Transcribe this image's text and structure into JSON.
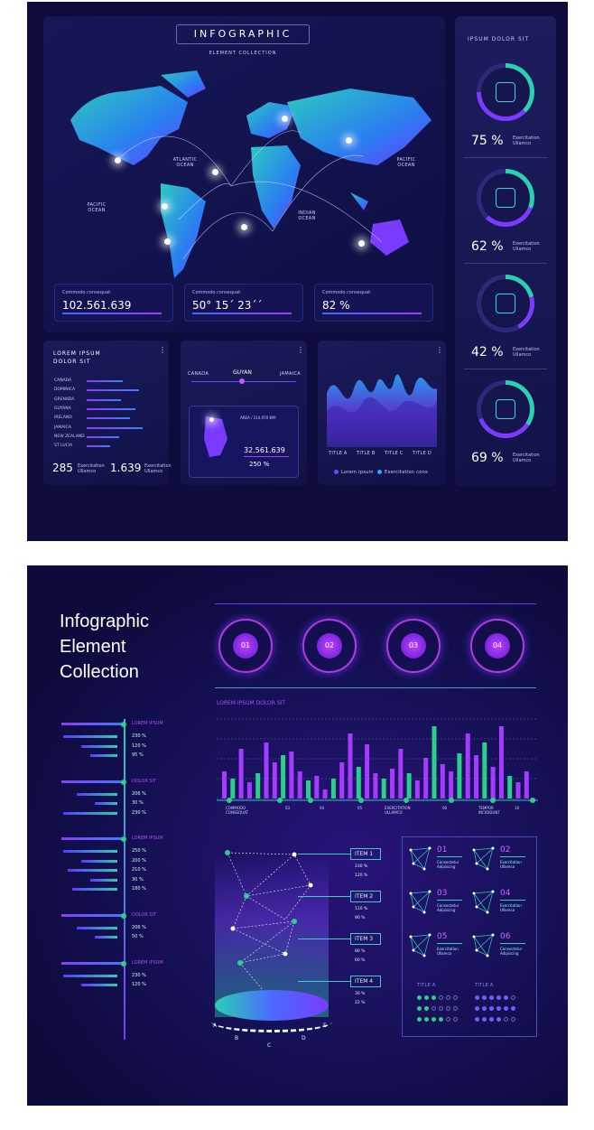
{
  "top": {
    "title": "INFOGRAPHIC",
    "subtitle": "ELEMENT COLLECTION",
    "oceans": {
      "atlantic": "ATLANTIC OCEAN",
      "pacific_left": "PACIFIC OCEAN",
      "pacific_right": "PACIFIC OCEAN",
      "indian": "INDIAN OCEAN"
    },
    "stats": [
      {
        "label": "Commodo consequat",
        "value": "102.561.639"
      },
      {
        "label": "Commodo consequat",
        "value": "50° 15´ 23´´"
      },
      {
        "label": "Commodo consequat",
        "value": "82 %"
      }
    ],
    "sidebar": {
      "title": "IPSUM DOLOR SIT",
      "items": [
        {
          "value": "75 %",
          "label": "Exercitation Ullamco"
        },
        {
          "value": "62 %",
          "label": "Exercitation Ullamco"
        },
        {
          "value": "42 %",
          "label": "Exercitation Ullamco"
        },
        {
          "value": "69 %",
          "label": "Exercitation Ullamco"
        }
      ]
    },
    "country_card": {
      "title": "LOREM IPSUM DOLOR SIT",
      "countries": [
        "CANADA",
        "DOMINICA",
        "GRENADA",
        "GUYANA",
        "IRELAND",
        "JAMAICA",
        "NEW ZEALAND",
        "ST LUCIA"
      ],
      "footer": [
        {
          "value": "285",
          "label": "Exercitation Ullamco"
        },
        {
          "value": "1.639",
          "label": "Exercitation Ullamco"
        }
      ]
    },
    "guyana_card": {
      "left": "CANADA",
      "center": "GUYAN",
      "right": "JAMAICA",
      "area": "AREA / 214,970 KM²",
      "value": "32.561.639",
      "pct": "250 %"
    },
    "wave_card": {
      "labels": [
        "TITLE A",
        "TITLE B",
        "TITLE C",
        "TITLE D"
      ],
      "legend": [
        "Lorem ipsum",
        "Exercitation cons"
      ]
    }
  },
  "bottom": {
    "title_lines": [
      "Infographic",
      "Element",
      "Collection"
    ],
    "circles": [
      "01",
      "02",
      "03",
      "04"
    ],
    "chart_title": "LOREM IPSUM DOLOR SIT",
    "left_groups": [
      {
        "label": "LOREM IPSUM",
        "vals": [
          "230 %",
          "120 %",
          "95 %"
        ]
      },
      {
        "label": "DOLOR SIT",
        "vals": [
          "206 %",
          "30 %",
          "230 %"
        ]
      },
      {
        "label": "LOREM IPSUM",
        "vals": [
          "250 %",
          "200 %",
          "210 %",
          "30 %",
          "180 %"
        ]
      },
      {
        "label": "DOLOR SIT",
        "vals": [
          "206 %",
          "50 %"
        ]
      },
      {
        "label": "LOREM IPSUM",
        "vals": [
          "230 %",
          "120 %"
        ]
      }
    ],
    "axis_labels": [
      "COMMODO CONSEQUAT",
      "03",
      "04",
      "05",
      "EXERCITATION ULLAMCO",
      "06",
      "TEMPOR INCIDIDUNT",
      "10"
    ],
    "items": [
      {
        "name": "ITEM 1",
        "vals": [
          "230 %",
          "120 %"
        ]
      },
      {
        "name": "ITEM 2",
        "vals": [
          "110 %",
          "90 %"
        ]
      },
      {
        "name": "ITEM 3",
        "vals": [
          "80 %",
          "60 %"
        ]
      },
      {
        "name": "ITEM 4",
        "vals": [
          "30 %",
          "22 %"
        ]
      }
    ],
    "cyl_letters": [
      "A",
      "B",
      "C",
      "D",
      "E"
    ],
    "geo": [
      {
        "n": "01",
        "t": "Consectetur Adipiscing"
      },
      {
        "n": "02",
        "t": "Exercitation Ullamco"
      },
      {
        "n": "03",
        "t": "Consectetur Adipiscing"
      },
      {
        "n": "04",
        "t": "Exercitation Ullamco"
      },
      {
        "n": "05",
        "t": "Exercitation Ullamco"
      },
      {
        "n": "06",
        "t": "Consectetur Adipiscing"
      }
    ],
    "dots_titles": [
      "TITLE A",
      "TITLE A"
    ]
  }
}
